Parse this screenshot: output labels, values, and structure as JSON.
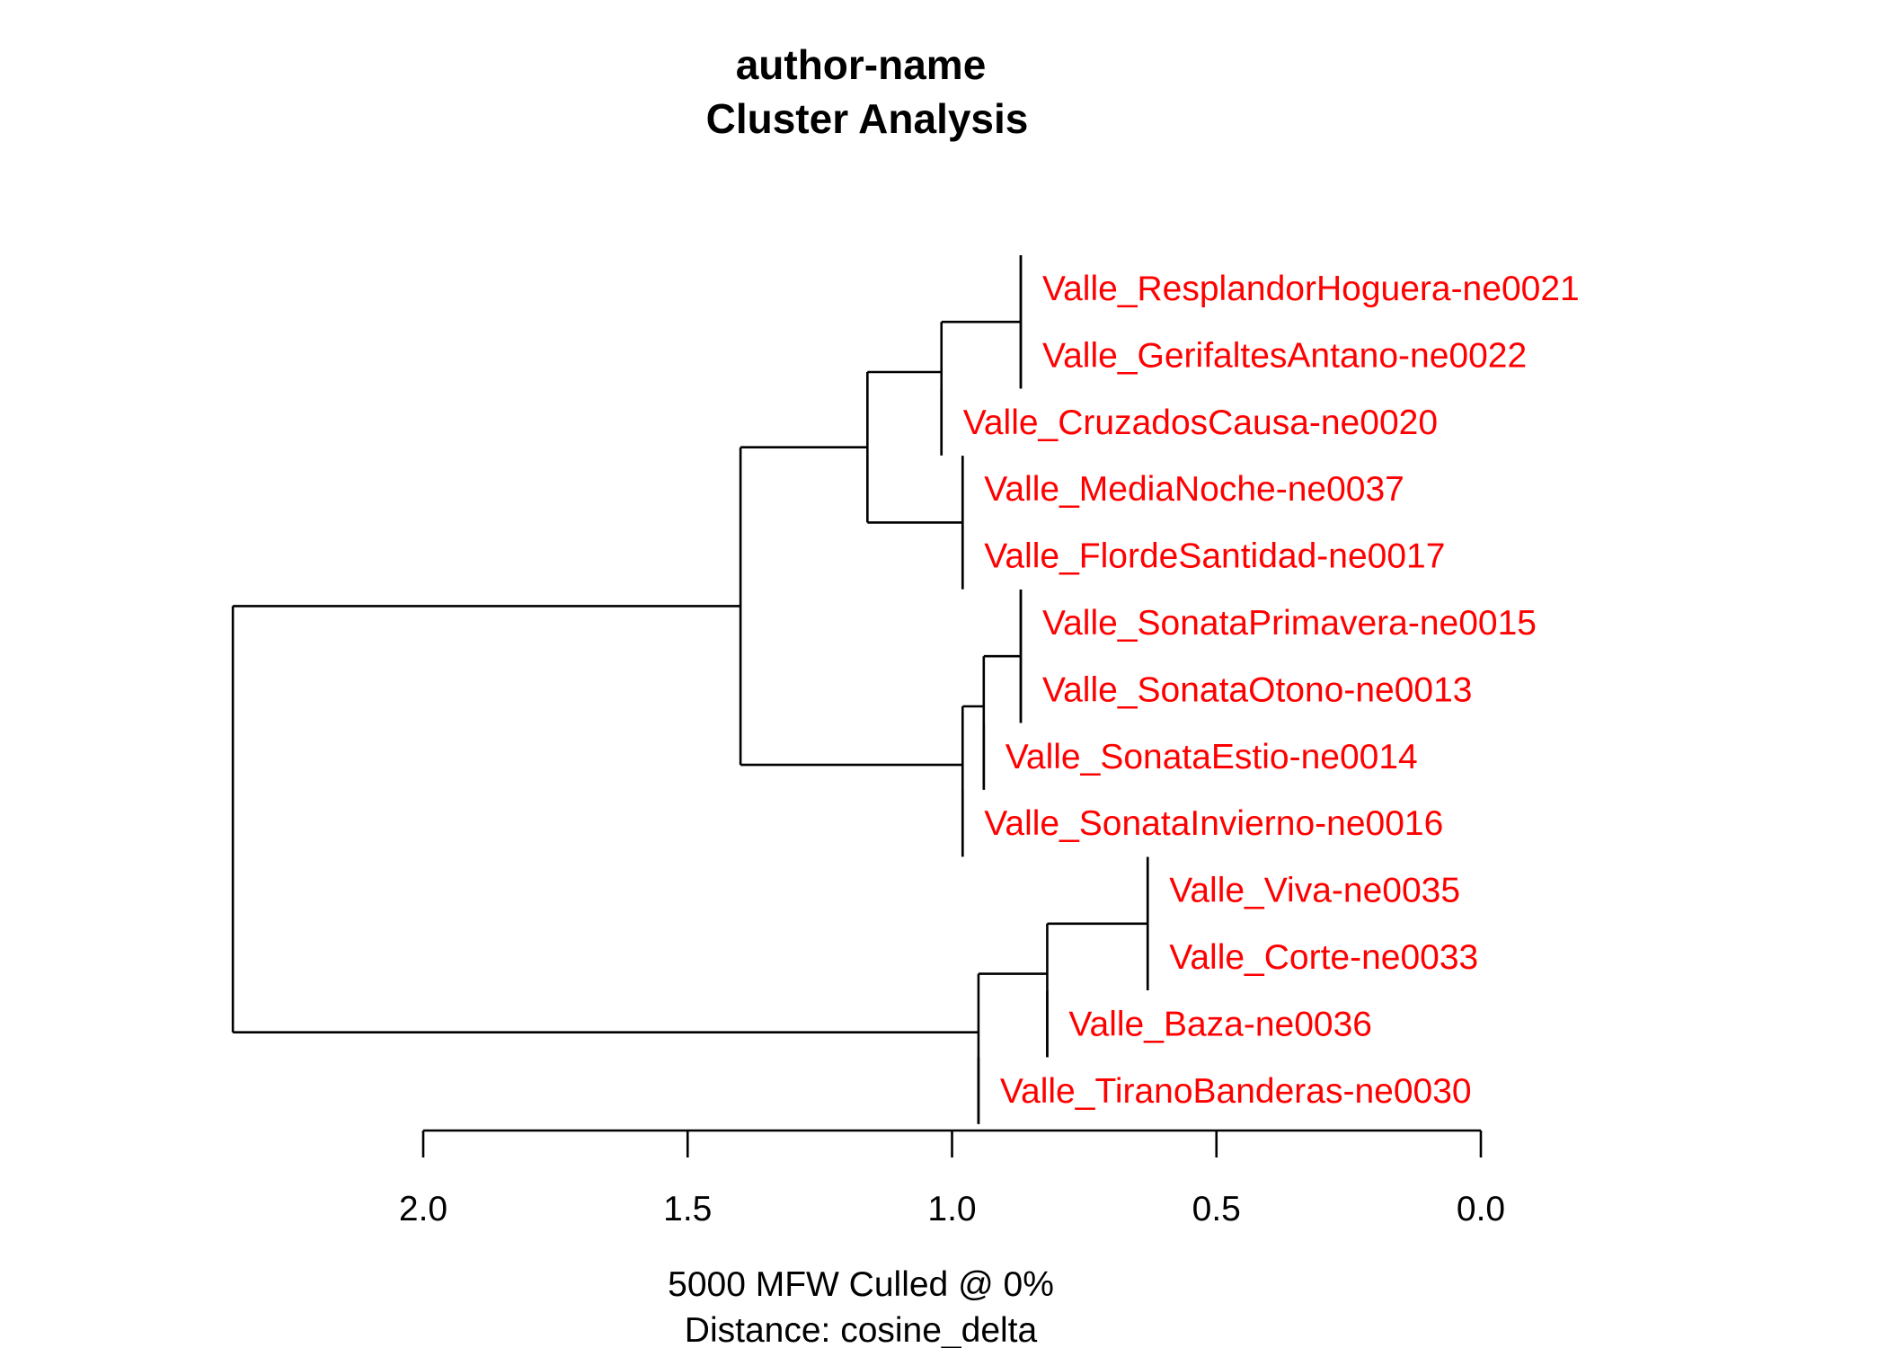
{
  "chart_data": {
    "type": "dendrogram",
    "title_lines": [
      "author-name",
      "Cluster Analysis"
    ],
    "subtitle_lines": [
      "5000 MFW  Culled @ 0%",
      "Distance: cosine_delta"
    ],
    "x_axis": {
      "range": [
        2.0,
        0.0
      ],
      "ticks": [
        2.0,
        1.5,
        1.0,
        0.5,
        0.0
      ],
      "tick_labels": [
        "2.0",
        "1.5",
        "1.0",
        "0.5",
        "0.0"
      ]
    },
    "leaf_color": "#ff0000",
    "branch_color": "#000000",
    "leaves": [
      "Valle_ResplandorHoguera-ne0021",
      "Valle_GerifaltesAntano-ne0022",
      "Valle_CruzadosCausa-ne0020",
      "Valle_MediaNoche-ne0037",
      "Valle_FlordeSantidad-ne0017",
      "Valle_SonataPrimavera-ne0015",
      "Valle_SonataOtono-ne0013",
      "Valle_SonataEstio-ne0014",
      "Valle_SonataInvierno-ne0016",
      "Valle_Viva-ne0035",
      "Valle_Corte-ne0033",
      "Valle_Baza-ne0036",
      "Valle_TiranoBanderas-ne0030"
    ],
    "merges": [
      {
        "id": "m1",
        "children": [
          "L0",
          "L1"
        ],
        "height": 0.87
      },
      {
        "id": "m2",
        "children": [
          "m1",
          "L2"
        ],
        "height": 1.02
      },
      {
        "id": "m3",
        "children": [
          "L3",
          "L4"
        ],
        "height": 0.98
      },
      {
        "id": "m4",
        "children": [
          "m2",
          "m3"
        ],
        "height": 1.16
      },
      {
        "id": "m5",
        "children": [
          "L5",
          "L6"
        ],
        "height": 0.87
      },
      {
        "id": "m6",
        "children": [
          "m5",
          "L7"
        ],
        "height": 0.94
      },
      {
        "id": "m7",
        "children": [
          "m6",
          "L8"
        ],
        "height": 0.98
      },
      {
        "id": "m8",
        "children": [
          "m4",
          "m7"
        ],
        "height": 1.4
      },
      {
        "id": "m9",
        "children": [
          "L9",
          "L10"
        ],
        "height": 0.63
      },
      {
        "id": "m10",
        "children": [
          "m9",
          "L11"
        ],
        "height": 0.82
      },
      {
        "id": "m11",
        "children": [
          "m10",
          "L12"
        ],
        "height": 0.95
      },
      {
        "id": "m12",
        "children": [
          "m8",
          "m11"
        ],
        "height": 2.36
      }
    ]
  }
}
